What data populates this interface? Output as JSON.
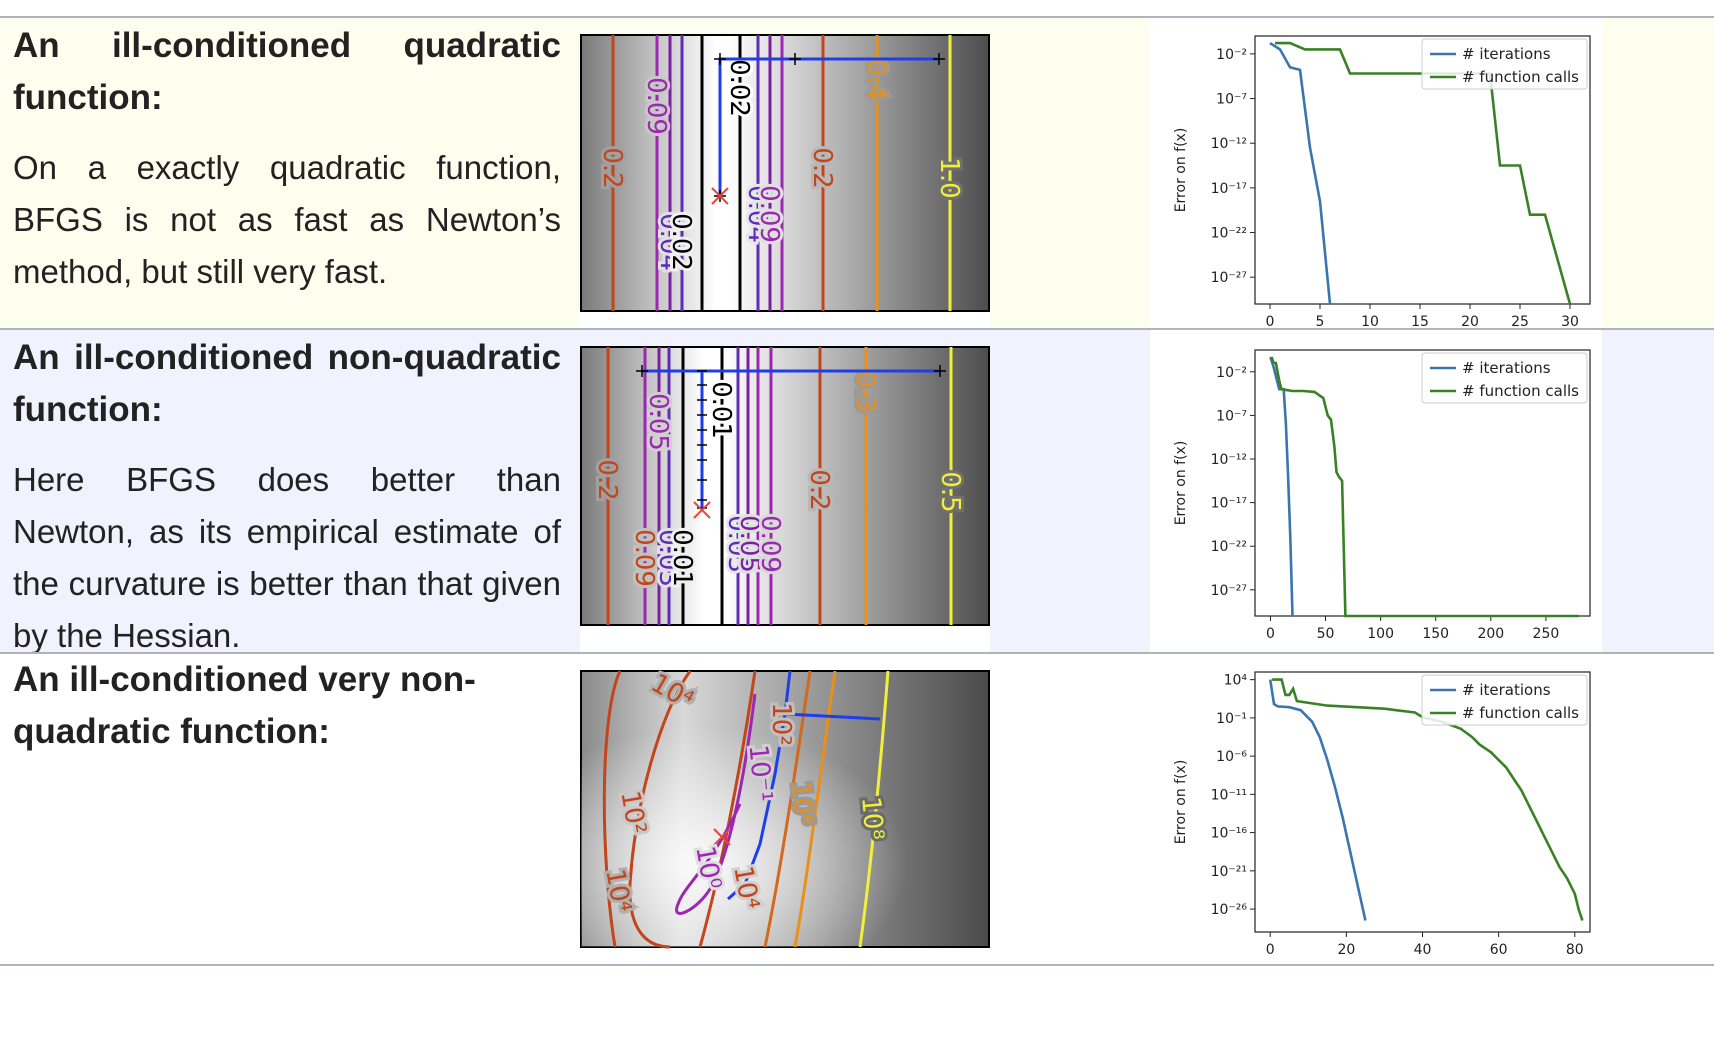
{
  "rows": [
    {
      "heading": "An ill-conditioned quadratic function:",
      "body": "On a exactly quadratic function, BFGS is not as fast as Newton’s method, but still very fast.",
      "bg": "#fefeef",
      "contour_labels": [
        "0.2",
        "0.09",
        "0.04",
        "0.02",
        "0.02",
        "0.04",
        "0.09",
        "0.2",
        "0.4",
        "1.0"
      ]
    },
    {
      "heading": "An ill-conditioned non-quadratic function:",
      "body": "Here BFGS does better than Newton, as its empirical estimate of the curvature is better than that given by the Hessian.",
      "bg": "#f1f2fd",
      "contour_labels": [
        "0.2",
        "0.09",
        "0.05",
        "0.03",
        "0.01",
        "0.01",
        "0.03",
        "0.05",
        "0.09",
        "0.2",
        "0.3",
        "0.5"
      ]
    },
    {
      "heading": "An ill-conditioned very non-quadratic function:",
      "body": "",
      "bg": "#ffffff",
      "contour_labels": [
        "10⁴",
        "10²",
        "10⁻¹",
        "10⁰",
        "10²",
        "10⁴",
        "10⁴",
        "10⁶",
        "10⁸"
      ]
    }
  ],
  "chart_data": [
    {
      "type": "line",
      "ylabel": "Error on f(x)",
      "yscale": "log",
      "ytick_labels": [
        "10⁻²",
        "10⁻⁷",
        "10⁻¹²",
        "10⁻¹⁷",
        "10⁻²²",
        "10⁻²⁷"
      ],
      "ytick_exp": [
        -2,
        -7,
        -12,
        -17,
        -22,
        -27
      ],
      "ylim_exp": [
        -30,
        0
      ],
      "xticks": [
        0,
        5,
        10,
        15,
        20,
        25,
        30
      ],
      "xlim": [
        -1.5,
        32
      ],
      "series": [
        {
          "name": "# iterations",
          "color": "#3b75af",
          "x": [
            0,
            1,
            2,
            3,
            4,
            5,
            6
          ],
          "y_exp": [
            -0.8,
            -1.5,
            -3.5,
            -3.8,
            -12.5,
            -18.5,
            -30
          ]
        },
        {
          "name": "# function calls",
          "color": "#3a8126",
          "x": [
            0.5,
            2,
            3.5,
            5,
            7,
            8,
            14,
            19,
            22,
            23,
            25,
            26,
            27.5,
            30
          ],
          "y_exp": [
            -0.8,
            -0.8,
            -1.5,
            -1.5,
            -1.5,
            -4.2,
            -4.2,
            -4.2,
            -4.2,
            -14.5,
            -14.5,
            -20,
            -20,
            -30
          ]
        }
      ],
      "legend": "top-right"
    },
    {
      "type": "line",
      "ylabel": "Error on f(x)",
      "yscale": "log",
      "ytick_labels": [
        "10⁻²",
        "10⁻⁷",
        "10⁻¹²",
        "10⁻¹⁷",
        "10⁻²²",
        "10⁻²⁷"
      ],
      "ytick_exp": [
        -2,
        -7,
        -12,
        -17,
        -22,
        -27
      ],
      "ylim_exp": [
        -30,
        0.5
      ],
      "xticks": [
        0,
        50,
        100,
        150,
        200,
        250
      ],
      "xlim": [
        -14,
        290
      ],
      "series": [
        {
          "name": "# iterations",
          "color": "#3b75af",
          "x": [
            0,
            3,
            8,
            12,
            14,
            16,
            18,
            20
          ],
          "y_exp": [
            -0.3,
            -1.5,
            -4.0,
            -4.0,
            -8.0,
            -14.0,
            -21.0,
            -30.0
          ]
        },
        {
          "name": "# function calls",
          "color": "#3a8126",
          "x": [
            1,
            3,
            5,
            8,
            10,
            20,
            30,
            40,
            48,
            52,
            55,
            58,
            60,
            62,
            65,
            68,
            70,
            100,
            200,
            280
          ],
          "y_exp": [
            -0.3,
            -1.0,
            -1.0,
            -3.0,
            -4.0,
            -4.2,
            -4.2,
            -4.3,
            -5.0,
            -7.0,
            -7.5,
            -10.5,
            -13.5,
            -14.0,
            -14.5,
            -30,
            -30,
            -30,
            -30,
            -30
          ]
        }
      ],
      "legend": "top-right"
    },
    {
      "type": "line",
      "ylabel": "Error on f(x)",
      "yscale": "log",
      "ytick_labels": [
        "10⁴",
        "10⁻¹",
        "10⁻⁶",
        "10⁻¹¹",
        "10⁻¹⁶",
        "10⁻²¹",
        "10⁻²⁶"
      ],
      "ytick_exp": [
        4,
        -1,
        -6,
        -11,
        -16,
        -21,
        -26
      ],
      "ylim_exp": [
        -29,
        5
      ],
      "xticks": [
        0,
        20,
        40,
        60,
        80
      ],
      "xlim": [
        -4,
        84
      ],
      "series": [
        {
          "name": "# iterations",
          "color": "#3b75af",
          "x": [
            0,
            1,
            2,
            5,
            8,
            11,
            13,
            15,
            17,
            19,
            21,
            23,
            25
          ],
          "y_exp": [
            4,
            0.8,
            0.5,
            0.4,
            0,
            -1.5,
            -3.5,
            -6.5,
            -10,
            -14,
            -18.5,
            -23,
            -27.5
          ]
        },
        {
          "name": "# function calls",
          "color": "#3a8126",
          "x": [
            0.5,
            3,
            4,
            5,
            6,
            7,
            15,
            30,
            38,
            40,
            45,
            50,
            53,
            55,
            58,
            60,
            62,
            64,
            66,
            68,
            70,
            72,
            74,
            76,
            78,
            80,
            81,
            82
          ],
          "y_exp": [
            4,
            4,
            2,
            2,
            2.8,
            1.2,
            0.6,
            0.2,
            -0.3,
            -0.9,
            -1.5,
            -2.4,
            -3.5,
            -4.5,
            -5.5,
            -6.5,
            -7.5,
            -9,
            -10.5,
            -12.5,
            -14.5,
            -16.5,
            -18.5,
            -20.5,
            -22,
            -24,
            -26,
            -27.5
          ]
        }
      ],
      "legend": "top-right"
    }
  ]
}
